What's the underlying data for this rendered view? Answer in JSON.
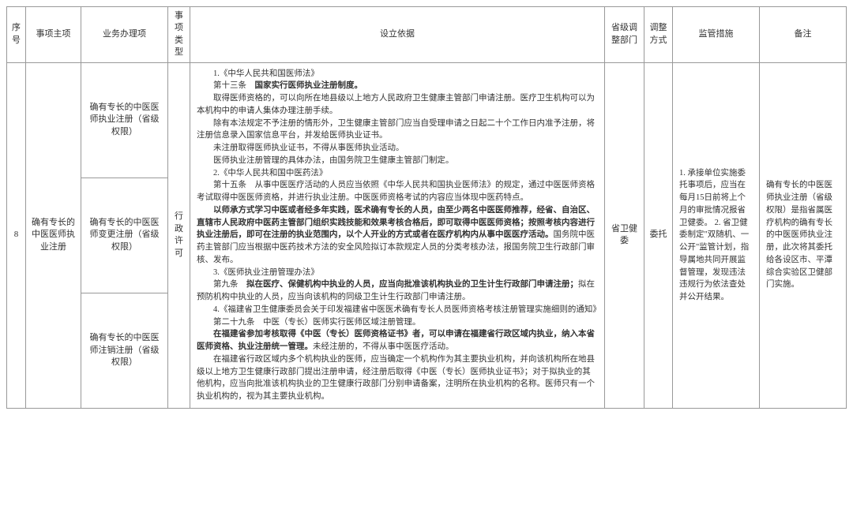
{
  "headers": {
    "seq": "序号",
    "main": "事项主项",
    "handle": "业务办理项",
    "type": "事项类型",
    "basis": "设立依据",
    "dept": "省级调整部门",
    "method": "调整方式",
    "supervise": "监管措施",
    "remark": "备注"
  },
  "row": {
    "seq": "8",
    "main": "确有专长的中医医师执业注册",
    "handle1": "确有专长的中医医师执业注册（省级权限）",
    "handle2": "确有专长的中医医师变更注册（省级权限）",
    "handle3": "确有专长的中医医师注销注册（省级权限）",
    "type": "行政许可",
    "dept": "省卫健委",
    "method": "委托",
    "basis": {
      "p1_1": "1.《中华人民共和国医师法》",
      "p1_2a": "第十三条　",
      "p1_2b": "国家实行医师执业注册制度。",
      "p1_3": "取得医师资格的，可以向所在地县级以上地方人民政府卫生健康主管部门申请注册。医疗卫生机构可以为本机构中的申请人集体办理注册手续。",
      "p1_4": "除有本法规定不予注册的情形外，卫生健康主管部门应当自受理申请之日起二十个工作日内准予注册，将注册信息录入国家信息平台，并发给医师执业证书。",
      "p1_5": "未注册取得医师执业证书，不得从事医师执业活动。",
      "p1_6": "医师执业注册管理的具体办法，由国务院卫生健康主管部门制定。",
      "p2_1": "2.《中华人民共和国中医药法》",
      "p2_2": "第十五条　从事中医医疗活动的人员应当依照《中华人民共和国执业医师法》的规定，通过中医医师资格考试取得中医医师资格，并进行执业注册。中医医师资格考试的内容应当体现中医药特点。",
      "p2_3a": "以师承方式学习中医或者经多年实践，医术确有专长的人员，由至少两名中医医师推荐，经省、自治区、直辖市人民政府中医药主管部门组织实践技能和效果考核合格后，即可取得中医医师资格；按照考核内容进行执业注册后，即可在注册的执业范围内，以个人开业的方式或者在医疗机构内从事中医医疗活动。",
      "p2_3b": "国务院中医药主管部门应当根据中医药技术方法的安全风险拟订本款规定人员的分类考核办法，报国务院卫生行政部门审核、发布。",
      "p3_1": "3.《医师执业注册管理办法》",
      "p3_2a": "第九条　",
      "p3_2b": "拟在医疗、保健机构中执业的人员，应当向批准该机构执业的卫生计生行政部门申请注册；",
      "p3_2c": "拟在预防机构中执业的人员，应当向该机构的同级卫生计生行政部门申请注册。",
      "p4_1": "4.《福建省卫生健康委员会关于印发福建省中医医术确有专长人员医师资格考核注册管理实施细则的通知》",
      "p4_2": "第二十九条　中医（专长）医师实行医师区域注册管理。",
      "p4_3a": "在福建省参加考核取得《中医（专长）医师资格证书》者，可以申请在福建省行政区域内执业，纳入本省医师资格、执业注册统一管理。",
      "p4_3b": "未经注册的，不得从事中医医疗活动。",
      "p4_4": "在福建省行政区域内多个机构执业的医师，应当确定一个机构作为其主要执业机构，并向该机构所在地县级以上地方卫生健康行政部门提出注册申请，经注册后取得《中医（专长）医师执业证书》；对于拟执业的其他机构，应当向批准该机构执业的卫生健康行政部门分别申请备案，注明所在执业机构的名称。医师只有一个执业机构的，视为其主要执业机构。"
    },
    "supervise": {
      "s1": "1. 承接单位实施委托事项后，应当在每月15日前将上个月的审批情况报省卫健委。",
      "s2": "2. 省卫健委制定\"双随机、一公开\"监管计划，指导属地共同开展监督管理，发现违法违规行为依法查处并公开结果。"
    },
    "remark": "确有专长的中医医师执业注册（省级权限）是指省属医疗机构的确有专长的中医医师执业注册，此次将其委托给各设区市、平潭综合实验区卫健部门实施。"
  },
  "style": {
    "font_family": "SimSun",
    "font_size_header": 11,
    "font_size_body": 10.5,
    "border_color": "#999999",
    "text_color": "#333333",
    "background_color": "#ffffff"
  }
}
